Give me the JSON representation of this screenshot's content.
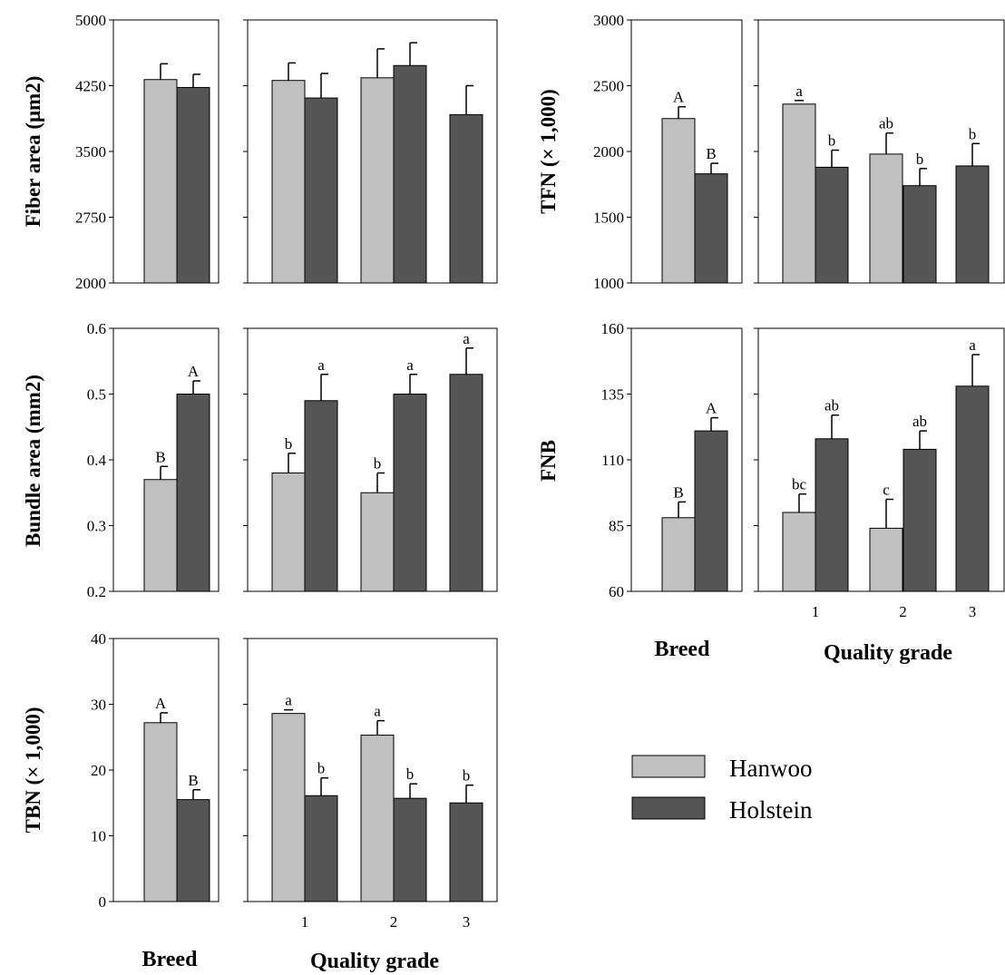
{
  "colors": {
    "Hanwoo": "#c0c0c0",
    "Holstein": "#555555"
  },
  "legend": [
    {
      "name": "Hanwoo",
      "color": "#c0c0c0"
    },
    {
      "name": "Holstein",
      "color": "#555555"
    }
  ],
  "xlabels": {
    "breed": "Breed",
    "grade": "Quality grade"
  },
  "chart_data": [
    {
      "type": "bar",
      "id": "fiber",
      "ylabel": "Fiber area (μm2)",
      "ylim": [
        2000,
        5000
      ],
      "yticks": [
        "5000",
        "4250",
        "3500",
        "2750",
        "2000"
      ],
      "tickvals": [
        5000,
        4250,
        3500,
        2750,
        2000
      ],
      "breed": {
        "categories": [
          "Hanwoo",
          "Holstein"
        ],
        "values": [
          4320,
          4230
        ],
        "errors": [
          180,
          150
        ],
        "letters": [
          "",
          ""
        ]
      },
      "grade": {
        "categories": [
          "1",
          "2",
          "3"
        ],
        "tick_labels": [],
        "series": [
          {
            "name": "Hanwoo",
            "values": [
              4310,
              4340,
              null
            ],
            "errors": [
              200,
              330,
              null
            ],
            "letters": [
              "",
              "",
              ""
            ]
          },
          {
            "name": "Holstein",
            "values": [
              4110,
              4480,
              3920
            ],
            "errors": [
              280,
              260,
              330
            ],
            "letters": [
              "",
              "",
              ""
            ]
          }
        ]
      }
    },
    {
      "type": "bar",
      "id": "tfn",
      "ylabel": "TFN (× 1,000)",
      "ylim": [
        1000,
        3000
      ],
      "yticks": [
        "3000",
        "2500",
        "2000",
        "1500",
        "1000"
      ],
      "tickvals": [
        3000,
        2500,
        2000,
        1500,
        1000
      ],
      "breed": {
        "categories": [
          "Hanwoo",
          "Holstein"
        ],
        "values": [
          2250,
          1830
        ],
        "errors": [
          90,
          80
        ],
        "letters": [
          "A",
          "B"
        ]
      },
      "grade": {
        "categories": [
          "1",
          "2",
          "3"
        ],
        "tick_labels": [],
        "series": [
          {
            "name": "Hanwoo",
            "values": [
              2360,
              1980,
              null
            ],
            "errors": [
              0,
              160,
              null
            ],
            "letters": [
              "a",
              "ab",
              ""
            ]
          },
          {
            "name": "Holstein",
            "values": [
              1880,
              1740,
              1890
            ],
            "errors": [
              130,
              130,
              170
            ],
            "letters": [
              "b",
              "b",
              "b"
            ]
          }
        ]
      }
    },
    {
      "type": "bar",
      "id": "bundle",
      "ylabel": "Bundle area (mm2)",
      "ylim": [
        0.2,
        0.6
      ],
      "yticks": [
        "0.6",
        "0.5",
        "0.4",
        "0.3",
        "0.2"
      ],
      "tickvals": [
        0.6,
        0.5,
        0.4,
        0.3,
        0.2
      ],
      "breed": {
        "categories": [
          "Hanwoo",
          "Holstein"
        ],
        "values": [
          0.37,
          0.5
        ],
        "errors": [
          0.02,
          0.02
        ],
        "letters": [
          "B",
          "A"
        ]
      },
      "grade": {
        "categories": [
          "1",
          "2",
          "3"
        ],
        "tick_labels": [],
        "series": [
          {
            "name": "Hanwoo",
            "values": [
              0.38,
              0.35,
              null
            ],
            "errors": [
              0.03,
              0.03,
              null
            ],
            "letters": [
              "b",
              "b",
              ""
            ]
          },
          {
            "name": "Holstein",
            "values": [
              0.49,
              0.5,
              0.53
            ],
            "errors": [
              0.04,
              0.03,
              0.04
            ],
            "letters": [
              "a",
              "a",
              "a"
            ]
          }
        ]
      }
    },
    {
      "type": "bar",
      "id": "fnb",
      "ylabel": "FNB",
      "ylim": [
        60,
        160
      ],
      "yticks": [
        "160",
        "135",
        "110",
        "85",
        "60"
      ],
      "tickvals": [
        160,
        135,
        110,
        85,
        60
      ],
      "breed": {
        "categories": [
          "Hanwoo",
          "Holstein"
        ],
        "values": [
          88,
          121
        ],
        "errors": [
          6,
          5
        ],
        "letters": [
          "B",
          "A"
        ]
      },
      "grade": {
        "categories": [
          "1",
          "2",
          "3"
        ],
        "tick_labels": [
          "1",
          "2",
          "3"
        ],
        "series": [
          {
            "name": "Hanwoo",
            "values": [
              90,
              84,
              null
            ],
            "errors": [
              7,
              11,
              null
            ],
            "letters": [
              "bc",
              "c",
              ""
            ]
          },
          {
            "name": "Holstein",
            "values": [
              118,
              114,
              138
            ],
            "errors": [
              9,
              7,
              12
            ],
            "letters": [
              "ab",
              "ab",
              "a"
            ]
          }
        ]
      }
    },
    {
      "type": "bar",
      "id": "tbn",
      "ylabel": "TBN (× 1,000)",
      "ylim": [
        0,
        40
      ],
      "yticks": [
        "40",
        "30",
        "20",
        "10",
        "0"
      ],
      "tickvals": [
        40,
        30,
        20,
        10,
        0
      ],
      "breed": {
        "categories": [
          "Hanwoo",
          "Holstein"
        ],
        "values": [
          27.2,
          15.5
        ],
        "errors": [
          1.5,
          1.5
        ],
        "letters": [
          "A",
          "B"
        ]
      },
      "grade": {
        "categories": [
          "1",
          "2",
          "3"
        ],
        "tick_labels": [
          "1",
          "2",
          "3"
        ],
        "series": [
          {
            "name": "Hanwoo",
            "values": [
              28.6,
              25.3,
              null
            ],
            "errors": [
              0,
              2.2,
              null
            ],
            "letters": [
              "a",
              "a",
              ""
            ]
          },
          {
            "name": "Holstein",
            "values": [
              16.1,
              15.7,
              15.0
            ],
            "errors": [
              2.7,
              2.2,
              2.7
            ],
            "letters": [
              "b",
              "b",
              "b"
            ]
          }
        ]
      }
    }
  ]
}
